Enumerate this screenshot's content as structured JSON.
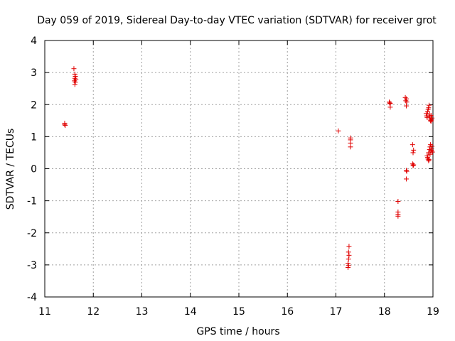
{
  "chart_data": {
    "type": "scatter",
    "title": "Day 059 of 2019, Sidereal Day-to-day VTEC variation (SDTVAR) for receiver grot",
    "xlabel": "GPS time / hours",
    "ylabel": "SDTVAR / TECUs",
    "xlim": [
      11,
      19
    ],
    "ylim": [
      -4,
      4
    ],
    "xticks": [
      "11",
      "12",
      "13",
      "14",
      "15",
      "16",
      "17",
      "18",
      "19"
    ],
    "yticks": [
      "-4",
      "-3",
      "-2",
      "-1",
      "0",
      "1",
      "2",
      "3",
      "4"
    ],
    "grid": true,
    "marker": "+",
    "color": "#e00000",
    "series": [
      {
        "name": "SDTVAR",
        "points": [
          [
            11.41,
            1.42
          ],
          [
            11.41,
            1.38
          ],
          [
            11.42,
            1.35
          ],
          [
            11.6,
            3.12
          ],
          [
            11.62,
            2.95
          ],
          [
            11.63,
            2.88
          ],
          [
            11.62,
            2.82
          ],
          [
            11.64,
            2.78
          ],
          [
            11.61,
            2.74
          ],
          [
            11.63,
            2.7
          ],
          [
            11.62,
            2.63
          ],
          [
            17.05,
            1.18
          ],
          [
            17.3,
            0.96
          ],
          [
            17.3,
            0.9
          ],
          [
            17.3,
            0.8
          ],
          [
            17.3,
            0.68
          ],
          [
            17.27,
            -2.42
          ],
          [
            17.26,
            -2.6
          ],
          [
            17.27,
            -2.7
          ],
          [
            17.26,
            -2.82
          ],
          [
            17.25,
            -2.95
          ],
          [
            17.26,
            -3.02
          ],
          [
            17.25,
            -3.08
          ],
          [
            18.1,
            2.08
          ],
          [
            18.11,
            2.05
          ],
          [
            18.12,
            2.03
          ],
          [
            18.12,
            1.92
          ],
          [
            18.28,
            -1.02
          ],
          [
            18.28,
            -1.35
          ],
          [
            18.28,
            -1.42
          ],
          [
            18.28,
            -1.48
          ],
          [
            18.43,
            2.22
          ],
          [
            18.45,
            2.18
          ],
          [
            18.44,
            2.12
          ],
          [
            18.46,
            2.08
          ],
          [
            18.45,
            1.96
          ],
          [
            18.45,
            -0.05
          ],
          [
            18.46,
            -0.08
          ],
          [
            18.45,
            -0.32
          ],
          [
            18.58,
            0.75
          ],
          [
            18.6,
            0.58
          ],
          [
            18.59,
            0.5
          ],
          [
            18.58,
            0.15
          ],
          [
            18.6,
            0.12
          ],
          [
            18.59,
            0.1
          ],
          [
            18.86,
            1.72
          ],
          [
            18.87,
            1.65
          ],
          [
            18.88,
            1.6
          ],
          [
            18.89,
            1.78
          ],
          [
            18.9,
            1.85
          ],
          [
            18.91,
            1.9
          ],
          [
            18.92,
            1.98
          ],
          [
            18.93,
            1.7
          ],
          [
            18.94,
            1.55
          ],
          [
            18.95,
            1.5
          ],
          [
            18.96,
            1.48
          ],
          [
            18.97,
            1.52
          ],
          [
            18.98,
            1.58
          ],
          [
            18.93,
            1.62
          ],
          [
            18.96,
            1.66
          ],
          [
            18.88,
            0.4
          ],
          [
            18.89,
            0.35
          ],
          [
            18.9,
            0.3
          ],
          [
            18.91,
            0.25
          ],
          [
            18.92,
            0.28
          ],
          [
            18.93,
            0.6
          ],
          [
            18.94,
            0.68
          ],
          [
            18.95,
            0.75
          ],
          [
            18.96,
            0.55
          ],
          [
            18.97,
            0.62
          ],
          [
            18.98,
            0.7
          ],
          [
            18.99,
            0.52
          ],
          [
            18.94,
            0.45
          ],
          [
            18.97,
            0.58
          ],
          [
            18.91,
            0.5
          ]
        ]
      }
    ]
  }
}
